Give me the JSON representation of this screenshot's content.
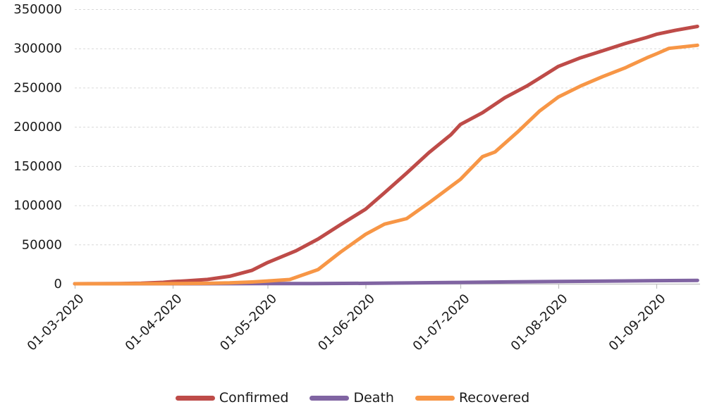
{
  "chart_data": {
    "type": "line",
    "title": "",
    "xlabel": "",
    "ylabel": "",
    "ylim": [
      0,
      350000
    ],
    "x_range_days": [
      0,
      197
    ],
    "grid": "horizontal-dashed",
    "legend_position": "bottom",
    "y_ticks": [
      {
        "value": 0,
        "label": "0"
      },
      {
        "value": 50000,
        "label": "50000"
      },
      {
        "value": 100000,
        "label": "100000"
      },
      {
        "value": 150000,
        "label": "150000"
      },
      {
        "value": 200000,
        "label": "200000"
      },
      {
        "value": 250000,
        "label": "250000"
      },
      {
        "value": 300000,
        "label": "300000"
      },
      {
        "value": 350000,
        "label": "350000"
      }
    ],
    "x_ticks": [
      {
        "day": 0,
        "label": "01-03-2020"
      },
      {
        "day": 31,
        "label": "01-04-2020"
      },
      {
        "day": 61,
        "label": "01-05-2020"
      },
      {
        "day": 92,
        "label": "01-06-2020"
      },
      {
        "day": 122,
        "label": "01-07-2020"
      },
      {
        "day": 153,
        "label": "01-08-2020"
      },
      {
        "day": 184,
        "label": "01-09-2020"
      }
    ],
    "series": [
      {
        "name": "Confirmed",
        "color": "#be4b48",
        "points": [
          [
            0,
            0
          ],
          [
            7,
            100
          ],
          [
            14,
            250
          ],
          [
            21,
            700
          ],
          [
            28,
            1800
          ],
          [
            31,
            2800
          ],
          [
            35,
            3600
          ],
          [
            42,
            5500
          ],
          [
            49,
            9500
          ],
          [
            56,
            17000
          ],
          [
            61,
            27000
          ],
          [
            70,
            42000
          ],
          [
            77,
            57000
          ],
          [
            84,
            75000
          ],
          [
            92,
            95000
          ],
          [
            98,
            116000
          ],
          [
            105,
            141000
          ],
          [
            112,
            167000
          ],
          [
            119,
            190000
          ],
          [
            122,
            203000
          ],
          [
            129,
            218000
          ],
          [
            136,
            237000
          ],
          [
            143,
            252000
          ],
          [
            147,
            262000
          ],
          [
            153,
            277000
          ],
          [
            160,
            288000
          ],
          [
            167,
            297000
          ],
          [
            174,
            306000
          ],
          [
            181,
            314000
          ],
          [
            184,
            318000
          ],
          [
            190,
            323000
          ],
          [
            197,
            328000
          ]
        ]
      },
      {
        "name": "Death",
        "color": "#8064a2",
        "points": [
          [
            0,
            0
          ],
          [
            31,
            30
          ],
          [
            61,
            150
          ],
          [
            75,
            300
          ],
          [
            92,
            550
          ],
          [
            107,
            1100
          ],
          [
            122,
            1700
          ],
          [
            137,
            2300
          ],
          [
            153,
            2900
          ],
          [
            168,
            3400
          ],
          [
            184,
            3950
          ],
          [
            197,
            4300
          ]
        ]
      },
      {
        "name": "Recovered",
        "color": "#f79646",
        "points": [
          [
            0,
            0
          ],
          [
            21,
            50
          ],
          [
            28,
            100
          ],
          [
            31,
            200
          ],
          [
            42,
            500
          ],
          [
            49,
            1100
          ],
          [
            56,
            2200
          ],
          [
            61,
            3500
          ],
          [
            68,
            5400
          ],
          [
            77,
            18000
          ],
          [
            84,
            40000
          ],
          [
            92,
            63000
          ],
          [
            98,
            76000
          ],
          [
            105,
            83000
          ],
          [
            112,
            103000
          ],
          [
            119,
            124000
          ],
          [
            122,
            133000
          ],
          [
            129,
            162000
          ],
          [
            133,
            168000
          ],
          [
            140,
            193000
          ],
          [
            147,
            220000
          ],
          [
            153,
            238000
          ],
          [
            160,
            252000
          ],
          [
            167,
            264000
          ],
          [
            174,
            275000
          ],
          [
            181,
            288000
          ],
          [
            184,
            293000
          ],
          [
            188,
            300000
          ],
          [
            197,
            304000
          ]
        ]
      }
    ],
    "style": {
      "gridline_color": "#d9d9d9",
      "axis_color": "#bfbfbf",
      "text_color": "#1a1a1a",
      "line_width": 5
    }
  },
  "legend": {
    "items": [
      {
        "label": "Confirmed",
        "color": "#be4b48"
      },
      {
        "label": "Death",
        "color": "#8064a2"
      },
      {
        "label": "Recovered",
        "color": "#f79646"
      }
    ]
  }
}
